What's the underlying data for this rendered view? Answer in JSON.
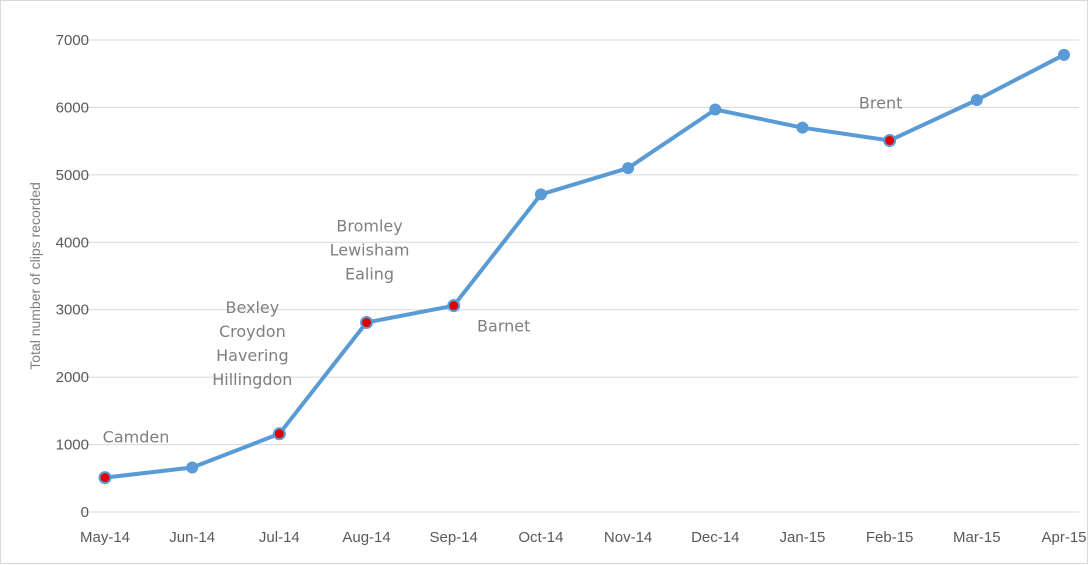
{
  "chart_data": {
    "type": "line",
    "title": "",
    "xlabel": "",
    "ylabel": "Total number of clips recorded",
    "categories": [
      "May-14",
      "Jun-14",
      "Jul-14",
      "Aug-14",
      "Sep-14",
      "Oct-14",
      "Nov-14",
      "Dec-14",
      "Jan-15",
      "Feb-15",
      "Mar-15",
      "Apr-15"
    ],
    "series": [
      {
        "values": [
          510,
          660,
          1160,
          2810,
          3060,
          4710,
          5100,
          5970,
          5700,
          5510,
          6110,
          6780
        ]
      }
    ],
    "ylim": [
      0,
      7000
    ],
    "yticks": [
      0,
      1000,
      2000,
      3000,
      4000,
      5000,
      6000,
      7000
    ],
    "grid": true,
    "legend": "none",
    "highlighted_points": [
      0,
      2,
      3,
      4,
      9
    ],
    "annotations": [
      {
        "point": 0,
        "lines": [
          "Camden"
        ]
      },
      {
        "point": 2,
        "lines": [
          "Bexley",
          "Croydon",
          "Havering",
          "Hillingdon"
        ]
      },
      {
        "point": 3,
        "lines": [
          "Bromley",
          "Lewisham",
          "Ealing"
        ]
      },
      {
        "point": 4,
        "lines": [
          "Barnet"
        ]
      },
      {
        "point": 9,
        "lines": [
          "Brent"
        ]
      }
    ],
    "colors": {
      "line": "#5b9bd5",
      "marker": "#5b9bd5",
      "highlight_fill": "#e00000",
      "grid": "#d9d9d9"
    }
  }
}
